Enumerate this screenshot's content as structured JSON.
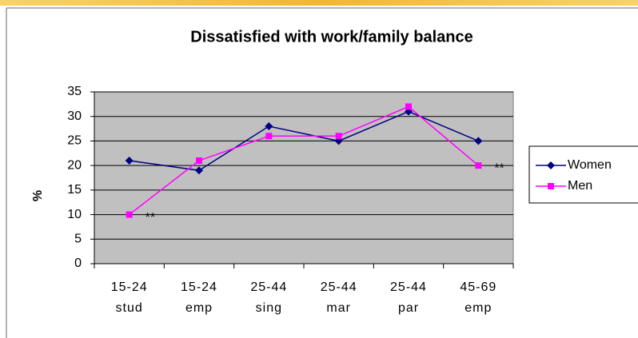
{
  "chart_data": {
    "type": "line",
    "title": "Dissatisfied with work/family balance",
    "y_label": "%",
    "categories": [
      [
        "15-24",
        "stud"
      ],
      [
        "15-24",
        "emp"
      ],
      [
        "25-44",
        "sing"
      ],
      [
        "25-44",
        "mar"
      ],
      [
        "25-44",
        "par"
      ],
      [
        "45-69",
        "emp"
      ]
    ],
    "series": [
      {
        "name": "Women",
        "color": "#000080",
        "marker": "diamond",
        "values": [
          21,
          19,
          28,
          25,
          31,
          25
        ]
      },
      {
        "name": "Men",
        "color": "#ff00ff",
        "marker": "square",
        "values": [
          10,
          21,
          26,
          26,
          32,
          20
        ]
      }
    ],
    "annotations": [
      "**",
      "**"
    ],
    "ylim": [
      0,
      35
    ],
    "yticks": [
      0,
      5,
      10,
      15,
      20,
      25,
      30,
      35
    ],
    "grid": true,
    "legend": "right",
    "plot_background": "#c0c0c0"
  }
}
